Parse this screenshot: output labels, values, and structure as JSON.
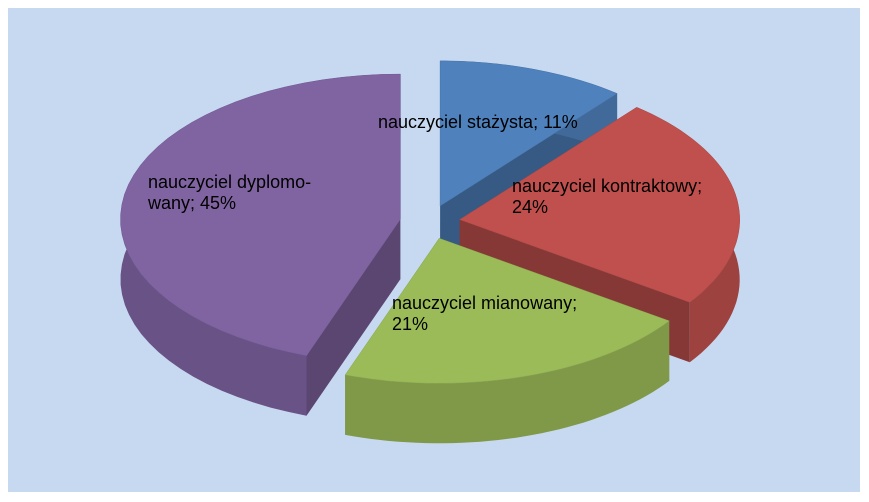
{
  "chart_data": {
    "type": "pie3d",
    "values": [
      11,
      24,
      21,
      45
    ],
    "value_labels": [
      "nauczyciel stażysta; 11%",
      "nauczyciel kontraktowy;\n24%",
      "nauczyciel mianowany;\n21%",
      "nauczyciel dyplomo-\nwany; 45%"
    ],
    "colors": [
      "#4f81bd",
      "#c0504d",
      "#9bbb59",
      "#8064a2"
    ]
  }
}
